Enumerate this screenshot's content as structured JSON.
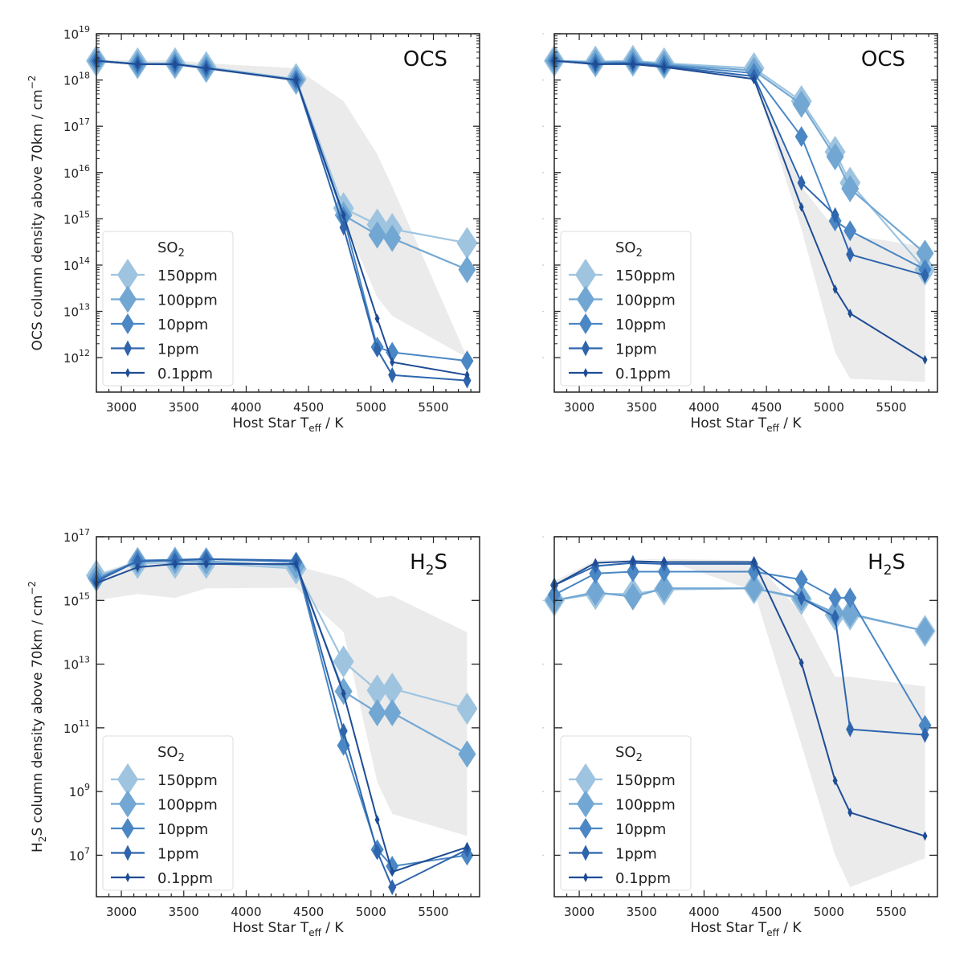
{
  "chart_data": [
    {
      "type": "line",
      "panel": "top-left",
      "title": "OCS",
      "xlabel": "Host Star T_eff / K",
      "ylabel": "OCS column density above 70km / cm^-2",
      "yscale": "log",
      "ylim": [
        180000000000.0,
        1e+19
      ],
      "xlim": [
        2800,
        5870
      ],
      "xticks": [
        3000,
        3500,
        4000,
        4500,
        5000,
        5500
      ],
      "yticks": [
        1000000000000.0,
        10000000000000.0,
        100000000000000.0,
        1000000000000000.0,
        1e+16,
        1e+17,
        1e+18,
        1e+19
      ],
      "ytick_labels": [
        [
          "10",
          "12"
        ],
        [
          "10",
          "13"
        ],
        [
          "10",
          "14"
        ],
        [
          "10",
          "15"
        ],
        [
          "10",
          "16"
        ],
        [
          "10",
          "17"
        ],
        [
          "10",
          "18"
        ],
        [
          "10",
          "19"
        ]
      ],
      "show_ytick_labels": true,
      "legend": {
        "title": "SO2",
        "placement": "lower-left"
      },
      "x": [
        2800,
        3130,
        3430,
        3680,
        4400,
        4780,
        5050,
        5170,
        5770
      ],
      "band": {
        "upper": [
          2.8e+18,
          2.6e+18,
          2.7e+18,
          2.3e+18,
          1.8e+18,
          3.5e+17,
          2.5e+16,
          5000000000000000.0,
          1000000000000.0
        ],
        "lower": [
          2.4e+18,
          2.1e+18,
          2e+18,
          1.7e+18,
          9e+17,
          1000000000000000.0,
          20000000000000.0,
          8000000000000.0,
          1000000000000.0
        ]
      },
      "series": [
        {
          "name": "150ppm",
          "values": [
            2.6e+18,
            2.3e+18,
            2.3e+18,
            1.9e+18,
            1.05e+18,
            1700000000000000.0,
            750000000000000.0,
            600000000000000.0,
            300000000000000.0
          ]
        },
        {
          "name": "100ppm",
          "values": [
            2.6e+18,
            2.2e+18,
            2.2e+18,
            1.8e+18,
            1e+18,
            1200000000000000.0,
            450000000000000.0,
            380000000000000.0,
            80000000000000.0
          ]
        },
        {
          "name": "10ppm",
          "values": [
            2.6e+18,
            2.2e+18,
            2.2e+18,
            1.8e+18,
            1e+18,
            1100000000000000.0,
            1700000000000.0,
            1300000000000.0,
            850000000000.0
          ]
        },
        {
          "name": "1ppm",
          "values": [
            2.6e+18,
            2.2e+18,
            2.2e+18,
            1.8e+18,
            1e+18,
            650000000000000.0,
            1500000000000.0,
            420000000000.0,
            320000000000.0
          ]
        },
        {
          "name": "0.1ppm",
          "values": [
            2.6e+18,
            2.2e+18,
            2.2e+18,
            1.8e+18,
            1e+18,
            1200000000000000.0,
            7000000000000.0,
            800000000000.0,
            420000000000.0
          ]
        }
      ]
    },
    {
      "type": "line",
      "panel": "top-right",
      "title": "OCS",
      "xlabel": "Host Star T_eff / K",
      "ylabel": "",
      "yscale": "log",
      "ylim": [
        180000000000.0,
        1e+19
      ],
      "xlim": [
        2800,
        5870
      ],
      "xticks": [
        3000,
        3500,
        4000,
        4500,
        5000,
        5500
      ],
      "yticks": [
        1000000000000.0,
        10000000000000.0,
        100000000000000.0,
        1000000000000000.0,
        1e+16,
        1e+17,
        1e+18,
        1e+19
      ],
      "ytick_labels": [],
      "show_ytick_labels": false,
      "legend": {
        "title": "SO2",
        "placement": "lower-left"
      },
      "x": [
        2800,
        3130,
        3430,
        3680,
        4400,
        4780,
        5050,
        5170,
        5770
      ],
      "band": {
        "upper": [
          2.6e+18,
          2.3e+18,
          2.3e+18,
          1.9e+18,
          1.1e+18,
          5000000000000000.0,
          600000000000000.0,
          450000000000000.0,
          250000000000000.0
        ],
        "lower": [
          2.6e+18,
          2.3e+18,
          2.3e+18,
          1.9e+18,
          1.1e+18,
          600000000000000.0,
          1300000000000.0,
          350000000000.0,
          300000000000.0
        ]
      },
      "series": [
        {
          "name": "150ppm",
          "values": [
            2.6e+18,
            2.5e+18,
            2.6e+18,
            2.3e+18,
            1.8e+18,
            3.5e+17,
            2.8e+16,
            6000000000000000.0,
            80000000000000.0
          ]
        },
        {
          "name": "100ppm",
          "values": [
            2.6e+18,
            2.4e+18,
            2.5e+18,
            2.2e+18,
            1.6e+18,
            3e+17,
            2.2e+16,
            4500000000000000.0,
            180000000000000.0
          ]
        },
        {
          "name": "10ppm",
          "values": [
            2.6e+18,
            2.3e+18,
            2.4e+18,
            2.1e+18,
            1.4e+18,
            6e+16,
            900000000000000.0,
            550000000000000.0,
            80000000000000.0
          ]
        },
        {
          "name": "1ppm",
          "values": [
            2.6e+18,
            2.2e+18,
            2.3e+18,
            2e+18,
            1.2e+18,
            6000000000000000.0,
            1200000000000000.0,
            170000000000000.0,
            60000000000000.0
          ]
        },
        {
          "name": "0.1ppm",
          "values": [
            2.6e+18,
            2.2e+18,
            2.2e+18,
            1.9e+18,
            1.05e+18,
            1800000000000000.0,
            30000000000000.0,
            9000000000000.0,
            900000000000.0
          ]
        }
      ]
    },
    {
      "type": "line",
      "panel": "bottom-left",
      "title": "H2S",
      "xlabel": "Host Star T_eff / K",
      "ylabel": "H2S column density above 70km / cm^-2",
      "yscale": "log",
      "ylim": [
        500000.0,
        1e+17
      ],
      "xlim": [
        2800,
        5870
      ],
      "xticks": [
        3000,
        3500,
        4000,
        4500,
        5000,
        5500
      ],
      "yticks": [
        10000000.0,
        1000000000.0,
        100000000000.0,
        10000000000000.0,
        1000000000000000.0,
        1e+17
      ],
      "ytick_labels": [
        [
          "10",
          "7"
        ],
        [
          "10",
          "9"
        ],
        [
          "10",
          "11"
        ],
        [
          "10",
          "13"
        ],
        [
          "10",
          "15"
        ],
        [
          "10",
          "17"
        ]
      ],
      "show_ytick_labels": true,
      "legend": {
        "title": "SO2",
        "placement": "lower-left"
      },
      "x": [
        2800,
        3130,
        3430,
        3680,
        4400,
        4780,
        5050,
        5170,
        5770
      ],
      "band": {
        "upper": [
          7000000000000000.0,
          1.8e+16,
          2e+16,
          2.2e+16,
          1.2e+16,
          5000000000000000.0,
          1200000000000000.0,
          1400000000000000.0,
          100000000000000.0
        ],
        "lower": [
          1000000000000000.0,
          1600000000000000.0,
          1200000000000000.0,
          2400000000000000.0,
          2500000000000000.0,
          100000000000000.0,
          2000000000.0,
          200000000.0,
          40000000.0
        ]
      },
      "series": [
        {
          "name": "150ppm",
          "values": [
            6000000000000000.0,
            1.5e+16,
            1.5e+16,
            1.5e+16,
            1e+16,
            12000000000000.0,
            1500000000000.0,
            1700000000000.0,
            400000000000.0
          ]
        },
        {
          "name": "100ppm",
          "values": [
            5000000000000000.0,
            1.7e+16,
            1.8e+16,
            1.7e+16,
            1.2e+16,
            1400000000000.0,
            300000000000.0,
            300000000000.0,
            15000000000.0
          ]
        },
        {
          "name": "10ppm",
          "values": [
            4500000000000000.0,
            1.8e+16,
            1.9e+16,
            2e+16,
            1.6e+16,
            28000000000.0,
            15000000.0,
            4500000.0,
            10000000.0
          ]
        },
        {
          "name": "1ppm",
          "values": [
            4000000000000000.0,
            1.7e+16,
            1.8e+16,
            2e+16,
            1.8e+16,
            80000000000.0,
            13000000.0,
            1000000.0,
            15000000.0
          ]
        },
        {
          "name": "0.1ppm",
          "values": [
            3500000000000000.0,
            1.1e+16,
            1.4e+16,
            1.4e+16,
            1.4e+16,
            1200000000000.0,
            130000000.0,
            3000000.0,
            18000000.0
          ]
        }
      ]
    },
    {
      "type": "line",
      "panel": "bottom-right",
      "title": "H2S",
      "xlabel": "Host Star T_eff / K",
      "ylabel": "",
      "yscale": "log",
      "ylim": [
        500000.0,
        1e+17
      ],
      "xlim": [
        2800,
        5870
      ],
      "xticks": [
        3000,
        3500,
        4000,
        4500,
        5000,
        5500
      ],
      "yticks": [
        10000000.0,
        1000000000.0,
        100000000000.0,
        10000000000000.0,
        1000000000000000.0,
        1e+17
      ],
      "ytick_labels": [],
      "show_ytick_labels": false,
      "legend": {
        "title": "SO2",
        "placement": "lower-left"
      },
      "x": [
        2800,
        3130,
        3430,
        3680,
        4400,
        4780,
        5050,
        5170,
        5770
      ],
      "band": {
        "upper": [
          4000000000000000.0,
          1.8e+16,
          1.9e+16,
          2e+16,
          1.8e+16,
          400000000000000.0,
          4000000000000.0,
          4000000000000.0,
          2000000000000.0
        ],
        "lower": [
          3000000000000000.0,
          1.6e+16,
          1.8e+16,
          1.9e+16,
          2000000000000000.0,
          30000000000.0,
          10000000.0,
          1000000.0,
          8000000.0
        ]
      },
      "series": [
        {
          "name": "150ppm",
          "values": [
            1000000000000000.0,
            1600000000000000.0,
            1600000000000000.0,
            2200000000000000.0,
            2400000000000000.0,
            1100000000000000.0,
            350000000000000.0,
            360000000000000.0,
            110000000000000.0
          ]
        },
        {
          "name": "100ppm",
          "values": [
            1000000000000000.0,
            1800000000000000.0,
            1300000000000000.0,
            2400000000000000.0,
            2400000000000000.0,
            1200000000000000.0,
            400000000000000.0,
            380000000000000.0,
            110000000000000.0
          ]
        },
        {
          "name": "10ppm",
          "values": [
            1500000000000000.0,
            7000000000000000.0,
            8000000000000000.0,
            8000000000000000.0,
            8000000000000000.0,
            4500000000000000.0,
            1200000000000000.0,
            1200000000000000.0,
            120000000000.0
          ]
        },
        {
          "name": "1ppm",
          "values": [
            3000000000000000.0,
            1.2e+16,
            1.5e+16,
            1.4e+16,
            1.4e+16,
            1200000000000000.0,
            300000000000000.0,
            90000000000.0,
            60000000000.0
          ]
        },
        {
          "name": "0.1ppm",
          "values": [
            3000000000000000.0,
            1.5e+16,
            1.7e+16,
            1.6e+16,
            1.6e+16,
            11000000000000.0,
            2200000000.0,
            220000000.0,
            40000000.0
          ]
        }
      ]
    }
  ],
  "legend": {
    "title_main": "SO",
    "title_sub": "2",
    "entries": [
      "150ppm",
      "100ppm",
      "10ppm",
      "1ppm",
      "0.1ppm"
    ]
  },
  "labels": {
    "xlabel_main": "Host Star T",
    "xlabel_sub": "eff",
    "xlabel_tail": " / K",
    "ocs_ylabel": "OCS column density above 70km / cm",
    "h2s_ylabel_a": "H",
    "h2s_ylabel_sub": "2",
    "h2s_ylabel_b": "S column density above 70km / cm",
    "ylabel_sup": "−2",
    "ocs_title": "OCS",
    "h2s_title_a": "H",
    "h2s_title_sub": "2",
    "h2s_title_b": "S"
  },
  "colors": {
    "150ppm": "#9ec4e0",
    "100ppm": "#72a7d3",
    "10ppm": "#4a87c4",
    "1ppm": "#2e65ad",
    "0.1ppm": "#1f4c94",
    "band": "#ebebeb"
  }
}
